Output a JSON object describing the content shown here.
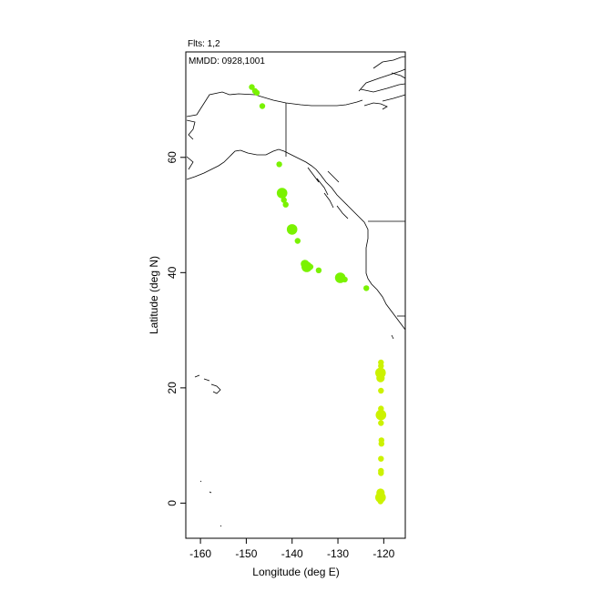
{
  "header": {
    "flights_label": "Flts: 1,2",
    "date_label": "MMDD: 0928,1001"
  },
  "chart_data": {
    "type": "scatter",
    "title": "",
    "xlabel": "Longitude (deg E)",
    "ylabel": "Latitude (deg N)",
    "xlim": [
      -163.2,
      -115.3
    ],
    "ylim": [
      -6.1,
      78.3
    ],
    "x_ticks": [
      -160,
      -150,
      -140,
      -130,
      -120
    ],
    "x_tick_labels": [
      "-160",
      "-150",
      "-140",
      "-130",
      "-120"
    ],
    "y_ticks": [
      0,
      20,
      40,
      60
    ],
    "y_tick_labels": [
      "0",
      "20",
      "40",
      "60"
    ],
    "grid": false,
    "legend": "none",
    "colors": {
      "flight1": "#ccf200",
      "flight2": "#7af200",
      "coast": "#000000"
    },
    "series": [
      {
        "values": [
          {
            "lon": -120.7,
            "lat": 0.3,
            "size": 1
          },
          {
            "lon": -120.7,
            "lat": 1.0,
            "size": 3
          },
          {
            "lon": -120.7,
            "lat": 1.8,
            "size": 2
          },
          {
            "lon": -120.6,
            "lat": 5.2,
            "size": 1
          },
          {
            "lon": -120.6,
            "lat": 5.6,
            "size": 1
          },
          {
            "lon": -120.6,
            "lat": 7.7,
            "size": 1
          },
          {
            "lon": -120.5,
            "lat": 10.3,
            "size": 1
          },
          {
            "lon": -120.5,
            "lat": 10.9,
            "size": 1
          },
          {
            "lon": -120.6,
            "lat": 13.9,
            "size": 1
          },
          {
            "lon": -120.6,
            "lat": 15.3,
            "size": 3
          },
          {
            "lon": -120.6,
            "lat": 16.4,
            "size": 1
          },
          {
            "lon": -120.6,
            "lat": 19.5,
            "size": 1
          },
          {
            "lon": -120.7,
            "lat": 21.7,
            "size": 2
          },
          {
            "lon": -120.7,
            "lat": 22.6,
            "size": 3
          },
          {
            "lon": -120.6,
            "lat": 23.8,
            "size": 1
          },
          {
            "lon": -120.6,
            "lat": 24.4,
            "size": 1
          }
        ]
      },
      {
        "values": [
          {
            "lon": -148.8,
            "lat": 72.2,
            "size": 1
          },
          {
            "lon": -148.1,
            "lat": 71.5,
            "size": 1
          },
          {
            "lon": -147.7,
            "lat": 71.2,
            "size": 1
          },
          {
            "lon": -146.5,
            "lat": 68.9,
            "size": 1
          },
          {
            "lon": -142.8,
            "lat": 58.8,
            "size": 1
          },
          {
            "lon": -142.2,
            "lat": 53.8,
            "size": 3
          },
          {
            "lon": -141.8,
            "lat": 52.6,
            "size": 1
          },
          {
            "lon": -141.4,
            "lat": 51.8,
            "size": 1
          },
          {
            "lon": -140.0,
            "lat": 47.5,
            "size": 3
          },
          {
            "lon": -138.8,
            "lat": 45.5,
            "size": 1
          },
          {
            "lon": -137.2,
            "lat": 41.5,
            "size": 2
          },
          {
            "lon": -136.8,
            "lat": 41.0,
            "size": 3
          },
          {
            "lon": -136.0,
            "lat": 41.0,
            "size": 1
          },
          {
            "lon": -134.2,
            "lat": 40.4,
            "size": 1
          },
          {
            "lon": -129.5,
            "lat": 39.1,
            "size": 3
          },
          {
            "lon": -128.5,
            "lat": 38.8,
            "size": 1
          },
          {
            "lon": -123.8,
            "lat": 37.3,
            "size": 1
          }
        ]
      }
    ]
  }
}
